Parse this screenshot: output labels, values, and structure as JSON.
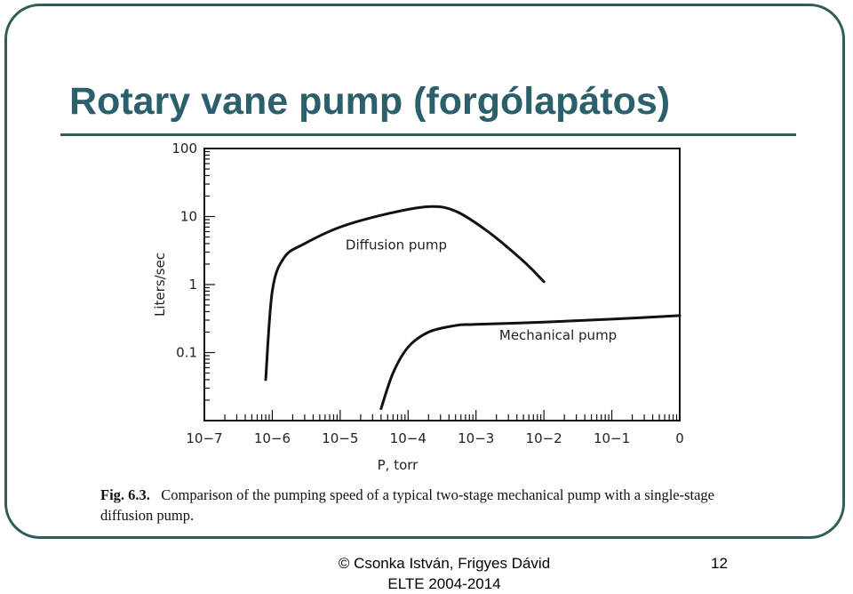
{
  "slide": {
    "title": "Rotary vane pump (forgólapátos)",
    "caption_label": "Fig. 6.3.",
    "caption_text": "Comparison of the pumping speed of a typical two-stage mechanical pump with a single-stage diffusion pump.",
    "footer_line1": "© Csonka István, Frigyes Dávid",
    "footer_line2": "ELTE 2004-2014",
    "page_number": "12",
    "accent_color": "#2a5f6b",
    "frame_color": "#2f5d5a"
  },
  "chart_data": {
    "type": "line",
    "xlabel": "P, torr",
    "ylabel": "Liters/sec",
    "x_scale": "log",
    "y_scale": "log",
    "x_tick_labels": [
      "10−7",
      "10−6",
      "10−5",
      "10−4",
      "10−3",
      "10−2",
      "10−1",
      "0"
    ],
    "y_tick_labels": [
      "100",
      "10",
      "1",
      "0.1"
    ],
    "xlim": [
      1e-07,
      1
    ],
    "ylim": [
      0.01,
      100
    ],
    "grid": false,
    "series": [
      {
        "name": "Diffusion pump",
        "points": [
          [
            8e-07,
            0.04
          ],
          [
            1e-06,
            0.8
          ],
          [
            1.5e-06,
            2.5
          ],
          [
            3e-06,
            4
          ],
          [
            1e-05,
            7
          ],
          [
            5e-05,
            11
          ],
          [
            0.0002,
            14
          ],
          [
            0.0005,
            12
          ],
          [
            0.0015,
            6
          ],
          [
            0.005,
            2.2
          ],
          [
            0.01,
            1.1
          ]
        ]
      },
      {
        "name": "Mechanical pump",
        "points": [
          [
            4e-05,
            0.015
          ],
          [
            6e-05,
            0.05
          ],
          [
            0.0001,
            0.12
          ],
          [
            0.0002,
            0.2
          ],
          [
            0.0005,
            0.25
          ],
          [
            0.001,
            0.26
          ],
          [
            0.01,
            0.28
          ],
          [
            0.1,
            0.31
          ],
          [
            1,
            0.35
          ]
        ]
      }
    ]
  }
}
